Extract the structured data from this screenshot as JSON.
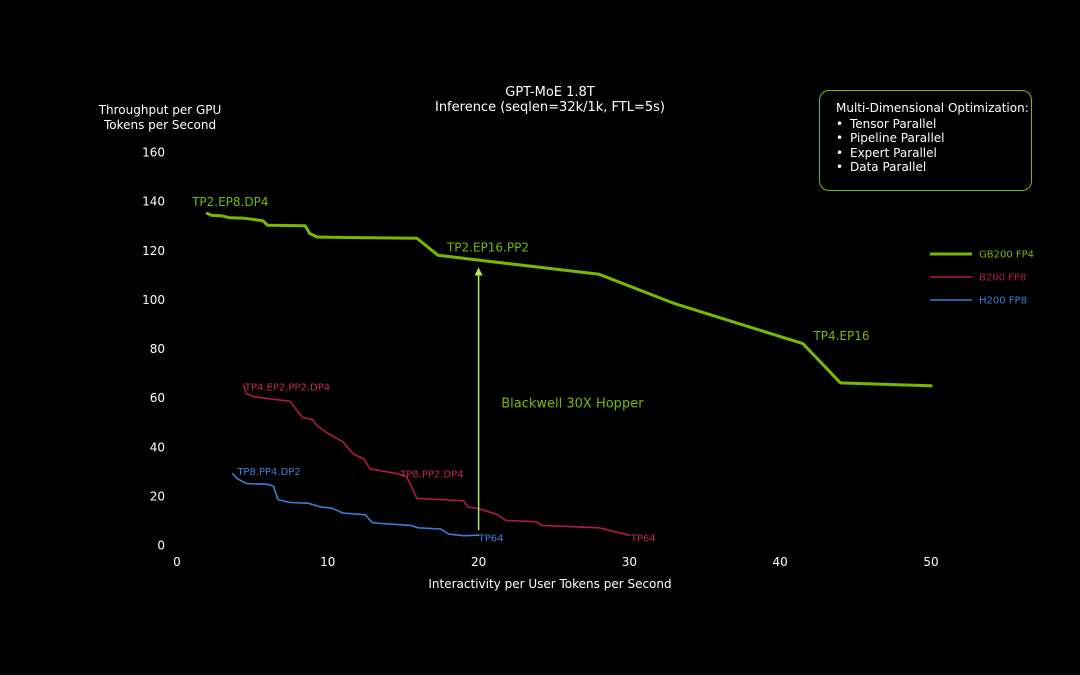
{
  "chart_data": {
    "type": "line",
    "title": "GPT-MoE 1.8T",
    "subtitle": "Inference (seqlen=32k/1k, FTL=5s)",
    "ylabel_line1": "Throughput per GPU",
    "ylabel_line2": "Tokens per Second",
    "xlabel": "Interactivity per User Tokens per Second",
    "xlim": [
      0,
      50
    ],
    "ylim": [
      0,
      160
    ],
    "xticks": [
      0,
      10,
      20,
      30,
      40,
      50
    ],
    "yticks": [
      0,
      20,
      40,
      60,
      80,
      100,
      120,
      140,
      160
    ],
    "grid": false,
    "legend_position": "right",
    "series": [
      {
        "name": "GB200 FP4",
        "color": "#76b900",
        "width": 3,
        "points": [
          [
            2.0,
            135
          ],
          [
            2.3,
            134.2
          ],
          [
            3.0,
            134
          ],
          [
            3.5,
            133.2
          ],
          [
            4.5,
            133
          ],
          [
            5.0,
            132.6
          ],
          [
            5.7,
            132
          ],
          [
            6.0,
            130.2
          ],
          [
            8.5,
            130
          ],
          [
            8.8,
            126.8
          ],
          [
            9.3,
            125.4
          ],
          [
            11,
            125.2
          ],
          [
            15.9,
            124.9
          ],
          [
            17.3,
            118
          ],
          [
            20,
            116
          ],
          [
            28,
            110.2
          ],
          [
            33,
            98.3
          ],
          [
            41.5,
            82
          ],
          [
            44,
            66
          ],
          [
            50,
            64.8
          ]
        ]
      },
      {
        "name": "B200 FP8",
        "color": "#b0194f",
        "width": 1.6,
        "points": [
          [
            4.4,
            65
          ],
          [
            4.6,
            61.5
          ],
          [
            5.2,
            60.3
          ],
          [
            7.5,
            58.5
          ],
          [
            8.3,
            52
          ],
          [
            9.0,
            51
          ],
          [
            9.3,
            48.5
          ],
          [
            10.0,
            45.5
          ],
          [
            11.0,
            42
          ],
          [
            11.7,
            37
          ],
          [
            12.4,
            35
          ],
          [
            12.8,
            31
          ],
          [
            14.5,
            29.2
          ],
          [
            15.2,
            28
          ],
          [
            15.5,
            24.5
          ],
          [
            15.9,
            19
          ],
          [
            19,
            18
          ],
          [
            19.3,
            15.5
          ],
          [
            20.0,
            14.8
          ],
          [
            21.2,
            12.5
          ],
          [
            21.8,
            10
          ],
          [
            23.8,
            9.5
          ],
          [
            24.2,
            8
          ],
          [
            28,
            7
          ],
          [
            30,
            4
          ]
        ]
      },
      {
        "name": "H200 FP8",
        "color": "#3a7fd5",
        "width": 1.6,
        "points": [
          [
            3.7,
            29
          ],
          [
            4.0,
            27
          ],
          [
            4.6,
            25
          ],
          [
            6.0,
            24.7
          ],
          [
            6.4,
            24
          ],
          [
            6.7,
            18.5
          ],
          [
            7.5,
            17.3
          ],
          [
            8.7,
            17
          ],
          [
            9.5,
            15.5
          ],
          [
            10.3,
            15
          ],
          [
            11.0,
            13
          ],
          [
            12.5,
            12.3
          ],
          [
            12.8,
            10
          ],
          [
            13.0,
            9
          ],
          [
            15.5,
            8
          ],
          [
            16.0,
            7
          ],
          [
            17.5,
            6.5
          ],
          [
            18,
            4.5
          ],
          [
            19,
            3.8
          ],
          [
            20,
            4
          ]
        ]
      }
    ],
    "annotations": [
      {
        "text": "TP2.EP8.DP4",
        "x": 1.0,
        "y": 138,
        "color": "#76b900",
        "size": 12
      },
      {
        "text": "TP2.EP16.PP2",
        "x": 17.9,
        "y": 119.5,
        "color": "#76b900",
        "size": 12
      },
      {
        "text": "TP4.EP16",
        "x": 42.2,
        "y": 83.5,
        "color": "#76b900",
        "size": 12
      },
      {
        "text": "TP4.EP2.PP2.DP4",
        "x": 4.5,
        "y": 63,
        "color": "#c4255f",
        "size": 10
      },
      {
        "text": "TP8.PP2.DP4",
        "x": 14.8,
        "y": 27.5,
        "color": "#c4255f",
        "size": 10
      },
      {
        "text": "TP64",
        "x": 30.1,
        "y": 1.5,
        "color": "#c4255f",
        "size": 10
      },
      {
        "text": "TP8.PP4.DP2",
        "x": 4.0,
        "y": 28.5,
        "color": "#3a7fd5",
        "size": 10
      },
      {
        "text": "TP64",
        "x": 20.0,
        "y": 1.5,
        "color": "#3a7fd5",
        "size": 10
      },
      {
        "text": "Blackwell 30X Hopper",
        "x": 21.5,
        "y": 56,
        "color": "#76b900",
        "size": 13
      }
    ],
    "arrow": {
      "x": 20,
      "y_from": 6,
      "y_to": 113,
      "color": "#a8f05a"
    }
  },
  "callout": {
    "title": "Multi-Dimensional Optimization:",
    "items": [
      "Tensor Parallel",
      "Pipeline Parallel",
      "Expert Parallel",
      "Data Parallel"
    ]
  },
  "colors": {
    "accent": "#76b900",
    "background": "#000000"
  }
}
